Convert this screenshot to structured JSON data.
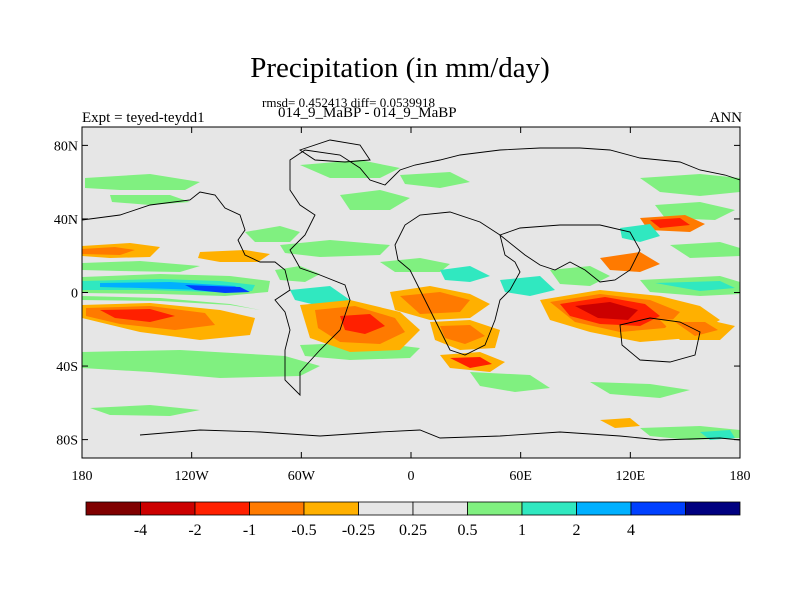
{
  "title": "Precipitation (in mm/day)",
  "stats_line": "rmsd= 0.452413 diff= 0.0539918",
  "case_line": "014_9_MaBP - 014_9_MaBP",
  "expt_label": "Expt = teyed-teydd1",
  "season_label": "ANN",
  "map": {
    "lon_range": [
      -180,
      180
    ],
    "lat_range": [
      -90,
      90
    ],
    "lat_ticks": [
      {
        "value": 80,
        "label": "80N"
      },
      {
        "value": 40,
        "label": "40N"
      },
      {
        "value": 0,
        "label": "0"
      },
      {
        "value": -40,
        "label": "40S"
      },
      {
        "value": -80,
        "label": "80S"
      }
    ],
    "lon_ticks": [
      {
        "value": -180,
        "label": "180"
      },
      {
        "value": -120,
        "label": "120W"
      },
      {
        "value": -60,
        "label": "60W"
      },
      {
        "value": 0,
        "label": "0"
      },
      {
        "value": 60,
        "label": "60E"
      },
      {
        "value": 120,
        "label": "120E"
      },
      {
        "value": 180,
        "label": "180"
      }
    ],
    "background_color": "#e6e6e6"
  },
  "colorbar": {
    "colors": [
      "#800000",
      "#cc0000",
      "#ff2000",
      "#ff7a00",
      "#ffb000",
      "#e6e6e6",
      "#e6e6e6",
      "#80f080",
      "#30e8c0",
      "#00b0ff",
      "#0040ff",
      "#000080"
    ],
    "labels": [
      "-4",
      "-2",
      "-1",
      "-0.5",
      "-0.25",
      "0.25",
      "0.5",
      "1",
      "2",
      "4"
    ]
  }
}
